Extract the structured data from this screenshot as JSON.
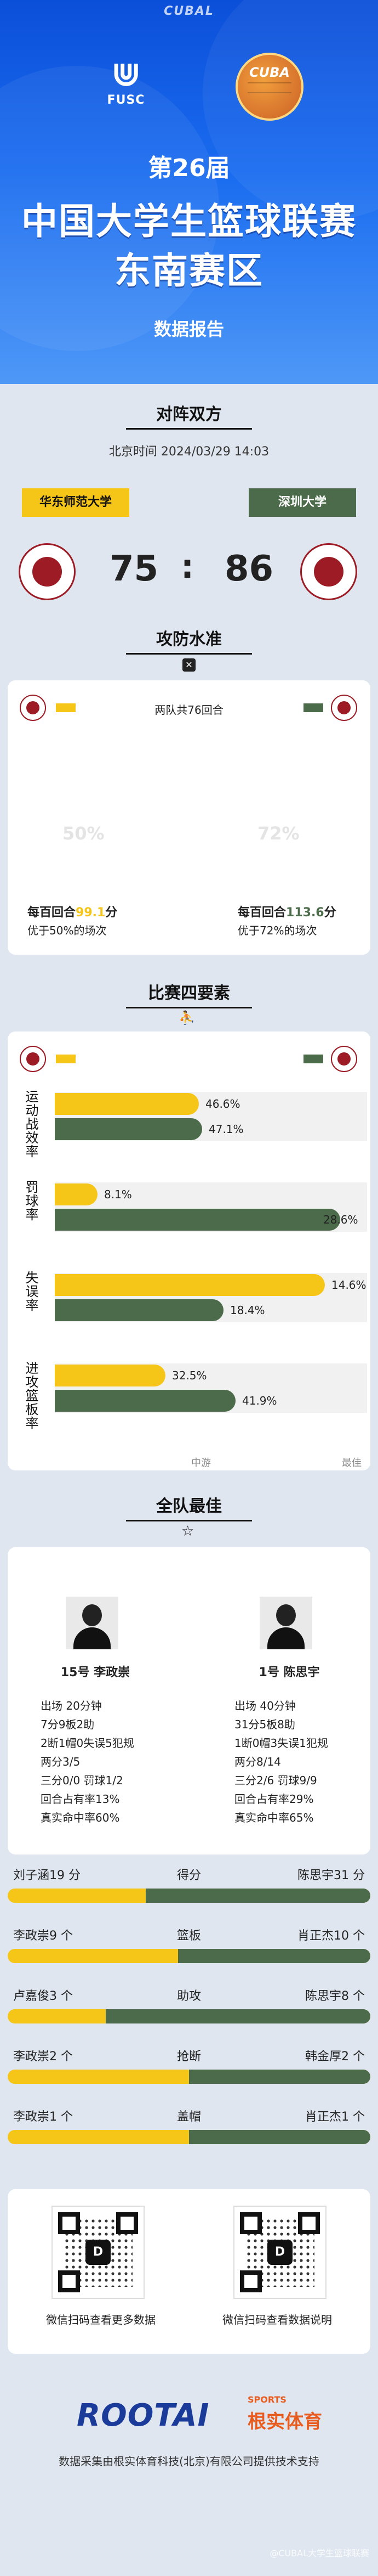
{
  "header": {
    "brand": "CUBAL",
    "left_logo_text": "FUSC",
    "right_logo_text": "CUBA",
    "edition": "第26届",
    "title_line1": "中国大学生篮球联赛",
    "title_line2": "东南赛区",
    "report_label": "数据报告"
  },
  "matchup": {
    "title": "对阵双方",
    "time": "北京时间 2024/03/29 14:03",
    "team_a": "华东师范大学",
    "team_b": "深圳大学",
    "score_a": "75",
    "score_sep": ":",
    "score_b": "86"
  },
  "offense": {
    "title": "攻防水准",
    "possessions": "两队共76回合",
    "pct_a": "50%",
    "pct_b": "72%",
    "per100_a_prefix": "每百回合",
    "per100_a_value": "99.1",
    "per100_a_suffix": "分",
    "per100_a_note": "优于50%的场次",
    "per100_b_prefix": "每百回合",
    "per100_b_value": "113.6",
    "per100_b_suffix": "分",
    "per100_b_note": "优于72%的场次"
  },
  "four_factors": {
    "title": "比赛四要素",
    "rows": [
      {
        "label": "运动战效率",
        "a": "46.6%",
        "b": "47.1%",
        "a_frac": 0.47,
        "b_frac": 0.48
      },
      {
        "label": "罚球率",
        "a": "8.1%",
        "b": "28.6%",
        "a_frac": 0.14,
        "b_frac": 0.93
      },
      {
        "label": "失误率",
        "a": "14.6%",
        "b": "18.4%",
        "a_frac": 0.88,
        "b_frac": 0.55
      },
      {
        "label": "进攻篮板率",
        "a": "32.5%",
        "b": "41.9%",
        "a_frac": 0.36,
        "b_frac": 0.59
      }
    ],
    "axis_mid": "中游",
    "axis_end": "最佳"
  },
  "best": {
    "title": "全队最佳",
    "player_a": {
      "name": "15号  李政崇",
      "lines": [
        "出场 20分钟",
        "7分9板2助",
        "2断1帽0失误5犯规",
        "两分3/5",
        "三分0/0  罚球1/2",
        "回合占有率13%",
        "真实命中率60%"
      ]
    },
    "player_b": {
      "name": "1号  陈思宇",
      "lines": [
        "出场 40分钟",
        "31分5板8助",
        "1断0帽3失误1犯规",
        "两分8/14",
        "三分2/6  罚球9/9",
        "回合占有率29%",
        "真实命中率65%"
      ]
    }
  },
  "leaders": [
    {
      "left": "刘子涵19 分",
      "center": "得分",
      "right": "陈思宇31 分",
      "b_frac": 0.62
    },
    {
      "left": "李政崇9 个",
      "center": "篮板",
      "right": "肖正杰10 个",
      "b_frac": 0.53
    },
    {
      "left": "卢嘉俊3 个",
      "center": "助攻",
      "right": "陈思宇8 个",
      "b_frac": 0.73
    },
    {
      "left": "李政崇2 个",
      "center": "抢断",
      "right": "韩金厚2 个",
      "b_frac": 0.5
    },
    {
      "left": "李政崇1 个",
      "center": "盖帽",
      "right": "肖正杰1 个",
      "b_frac": 0.5
    }
  ],
  "footer": {
    "qr_left_caption": "微信扫码查看更多数据",
    "qr_right_caption": "微信扫码查看数据说明",
    "brand": "ROOTAI",
    "brand_sub": "根实体育",
    "brand_tag": "SPORTS",
    "credit": "数据采集由根实体育科技(北京)有限公司提供技术支持",
    "watermark": "@CUBAL大学生篮球联赛"
  },
  "colors": {
    "team_a": "#f5c518",
    "team_b": "#4c6b4a",
    "accent": "#1a6cf0"
  }
}
